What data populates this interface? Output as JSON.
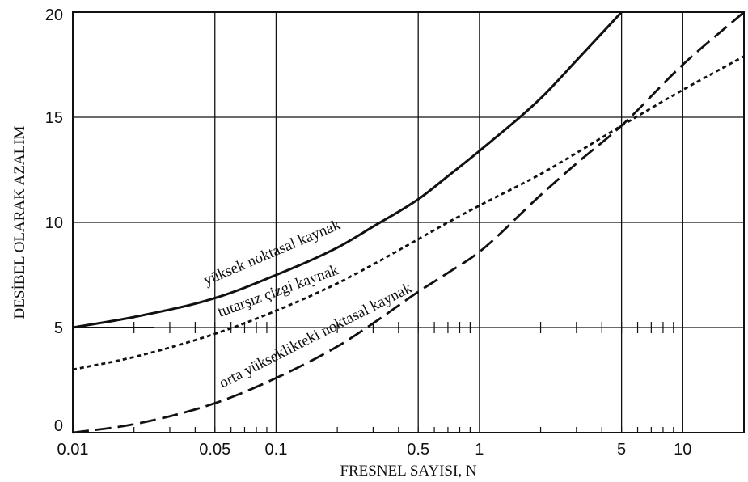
{
  "chart_data": {
    "type": "line",
    "title": "",
    "xlabel": "FRESNEL SAYISI, N",
    "ylabel": "DESİBEL OLARAK AZALIM",
    "xscale": "log",
    "xlim": [
      0.01,
      20
    ],
    "ylim": [
      0,
      20
    ],
    "grid": true,
    "x_ticks": [
      {
        "value": 0.01,
        "label": "0.01"
      },
      {
        "value": 0.05,
        "label": "0.05"
      },
      {
        "value": 0.1,
        "label": "0.1"
      },
      {
        "value": 0.5,
        "label": "0.5"
      },
      {
        "value": 1,
        "label": "1"
      },
      {
        "value": 5,
        "label": "5"
      },
      {
        "value": 10,
        "label": "10"
      }
    ],
    "y_ticks": [
      {
        "value": 0,
        "label": "0"
      },
      {
        "value": 5,
        "label": "5"
      },
      {
        "value": 10,
        "label": "10"
      },
      {
        "value": 15,
        "label": "15"
      },
      {
        "value": 20,
        "label": "20"
      }
    ],
    "series": [
      {
        "name": "yüksek noktasal kaynak",
        "style": "solid",
        "color": "#111111",
        "x": [
          0.01,
          0.02,
          0.05,
          0.1,
          0.2,
          0.3,
          0.5,
          0.7,
          1,
          2,
          3,
          5
        ],
        "y": [
          5.0,
          5.5,
          6.4,
          7.5,
          8.8,
          9.8,
          11.1,
          12.2,
          13.4,
          15.9,
          17.7,
          20.0
        ]
      },
      {
        "name": "tutarşız çizgi kaynak",
        "style": "dotted",
        "color": "#111111",
        "x": [
          0.01,
          0.02,
          0.05,
          0.1,
          0.2,
          0.3,
          0.5,
          0.7,
          1,
          2,
          3,
          5,
          10,
          20
        ],
        "y": [
          3.0,
          3.6,
          4.7,
          5.8,
          7.1,
          8.0,
          9.2,
          10.0,
          10.8,
          12.3,
          13.3,
          14.6,
          16.3,
          17.9
        ]
      },
      {
        "name": "orta yükseklikteki noktasal kaynak",
        "style": "dashed",
        "color": "#111111",
        "x": [
          0.01,
          0.02,
          0.05,
          0.1,
          0.2,
          0.3,
          0.5,
          0.7,
          1,
          2,
          3,
          5,
          10,
          20
        ],
        "y": [
          0.0,
          0.4,
          1.4,
          2.6,
          4.1,
          5.2,
          6.7,
          7.6,
          8.6,
          11.3,
          12.8,
          14.6,
          17.5,
          20.0
        ]
      }
    ]
  }
}
